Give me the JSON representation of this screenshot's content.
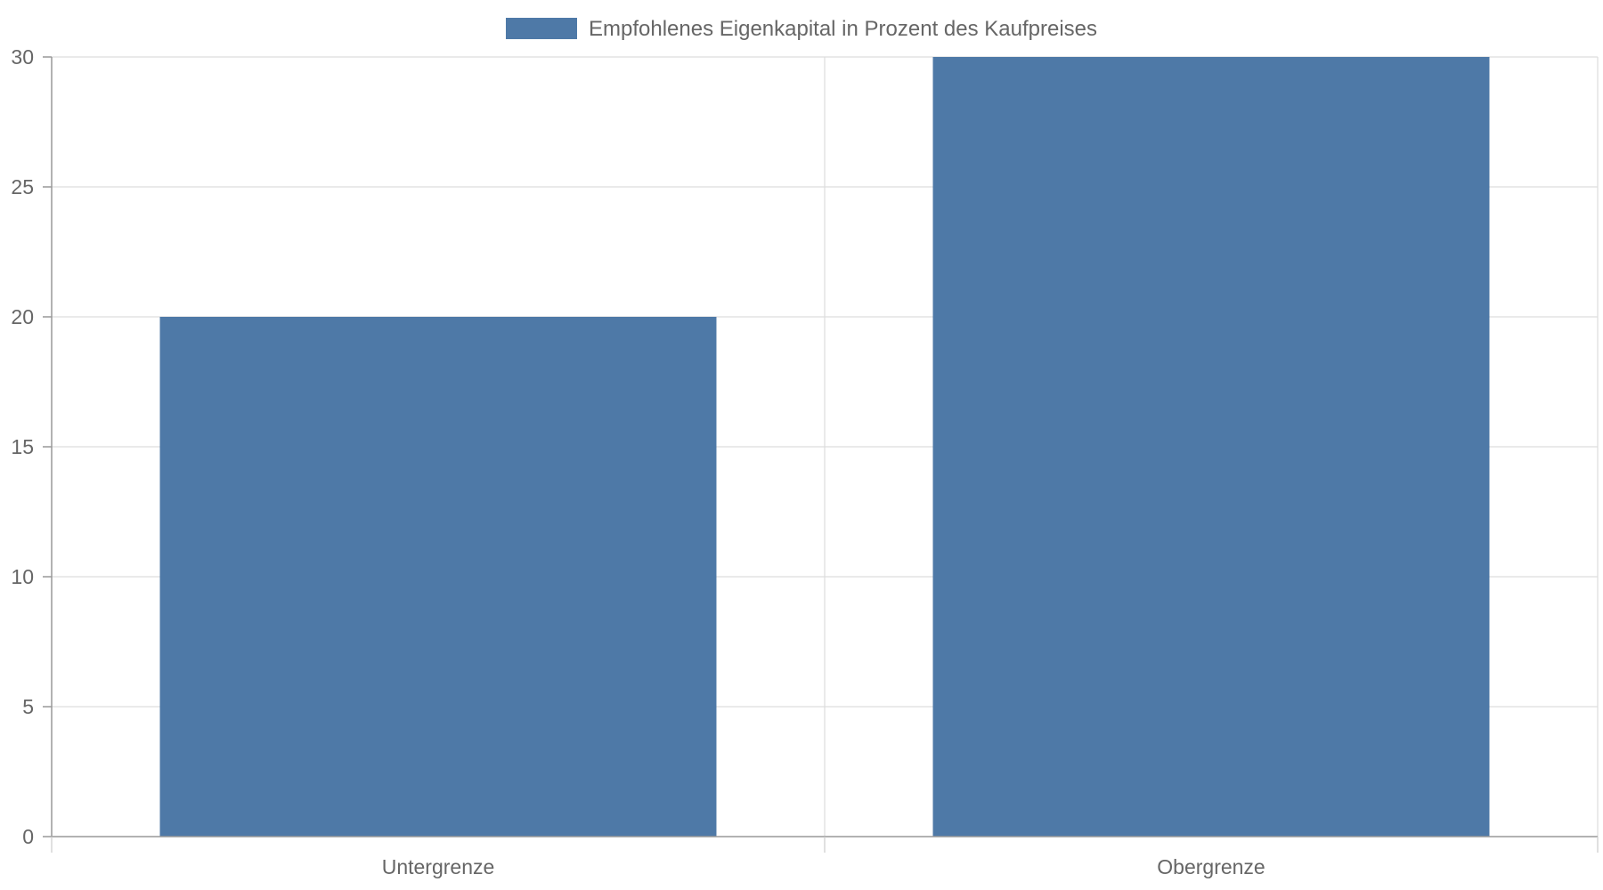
{
  "chart_data": {
    "type": "bar",
    "categories": [
      "Untergrenze",
      "Obergrenze"
    ],
    "series": [
      {
        "name": "Empfohlenes Eigenkapital in Prozent des Kaufpreises",
        "values": [
          20,
          30
        ],
        "color": "#4e79a7"
      }
    ],
    "ylim": [
      0,
      30
    ],
    "yticks": [
      0,
      5,
      10,
      15,
      20,
      25,
      30
    ],
    "grid": true,
    "legend_position": "top-center"
  }
}
